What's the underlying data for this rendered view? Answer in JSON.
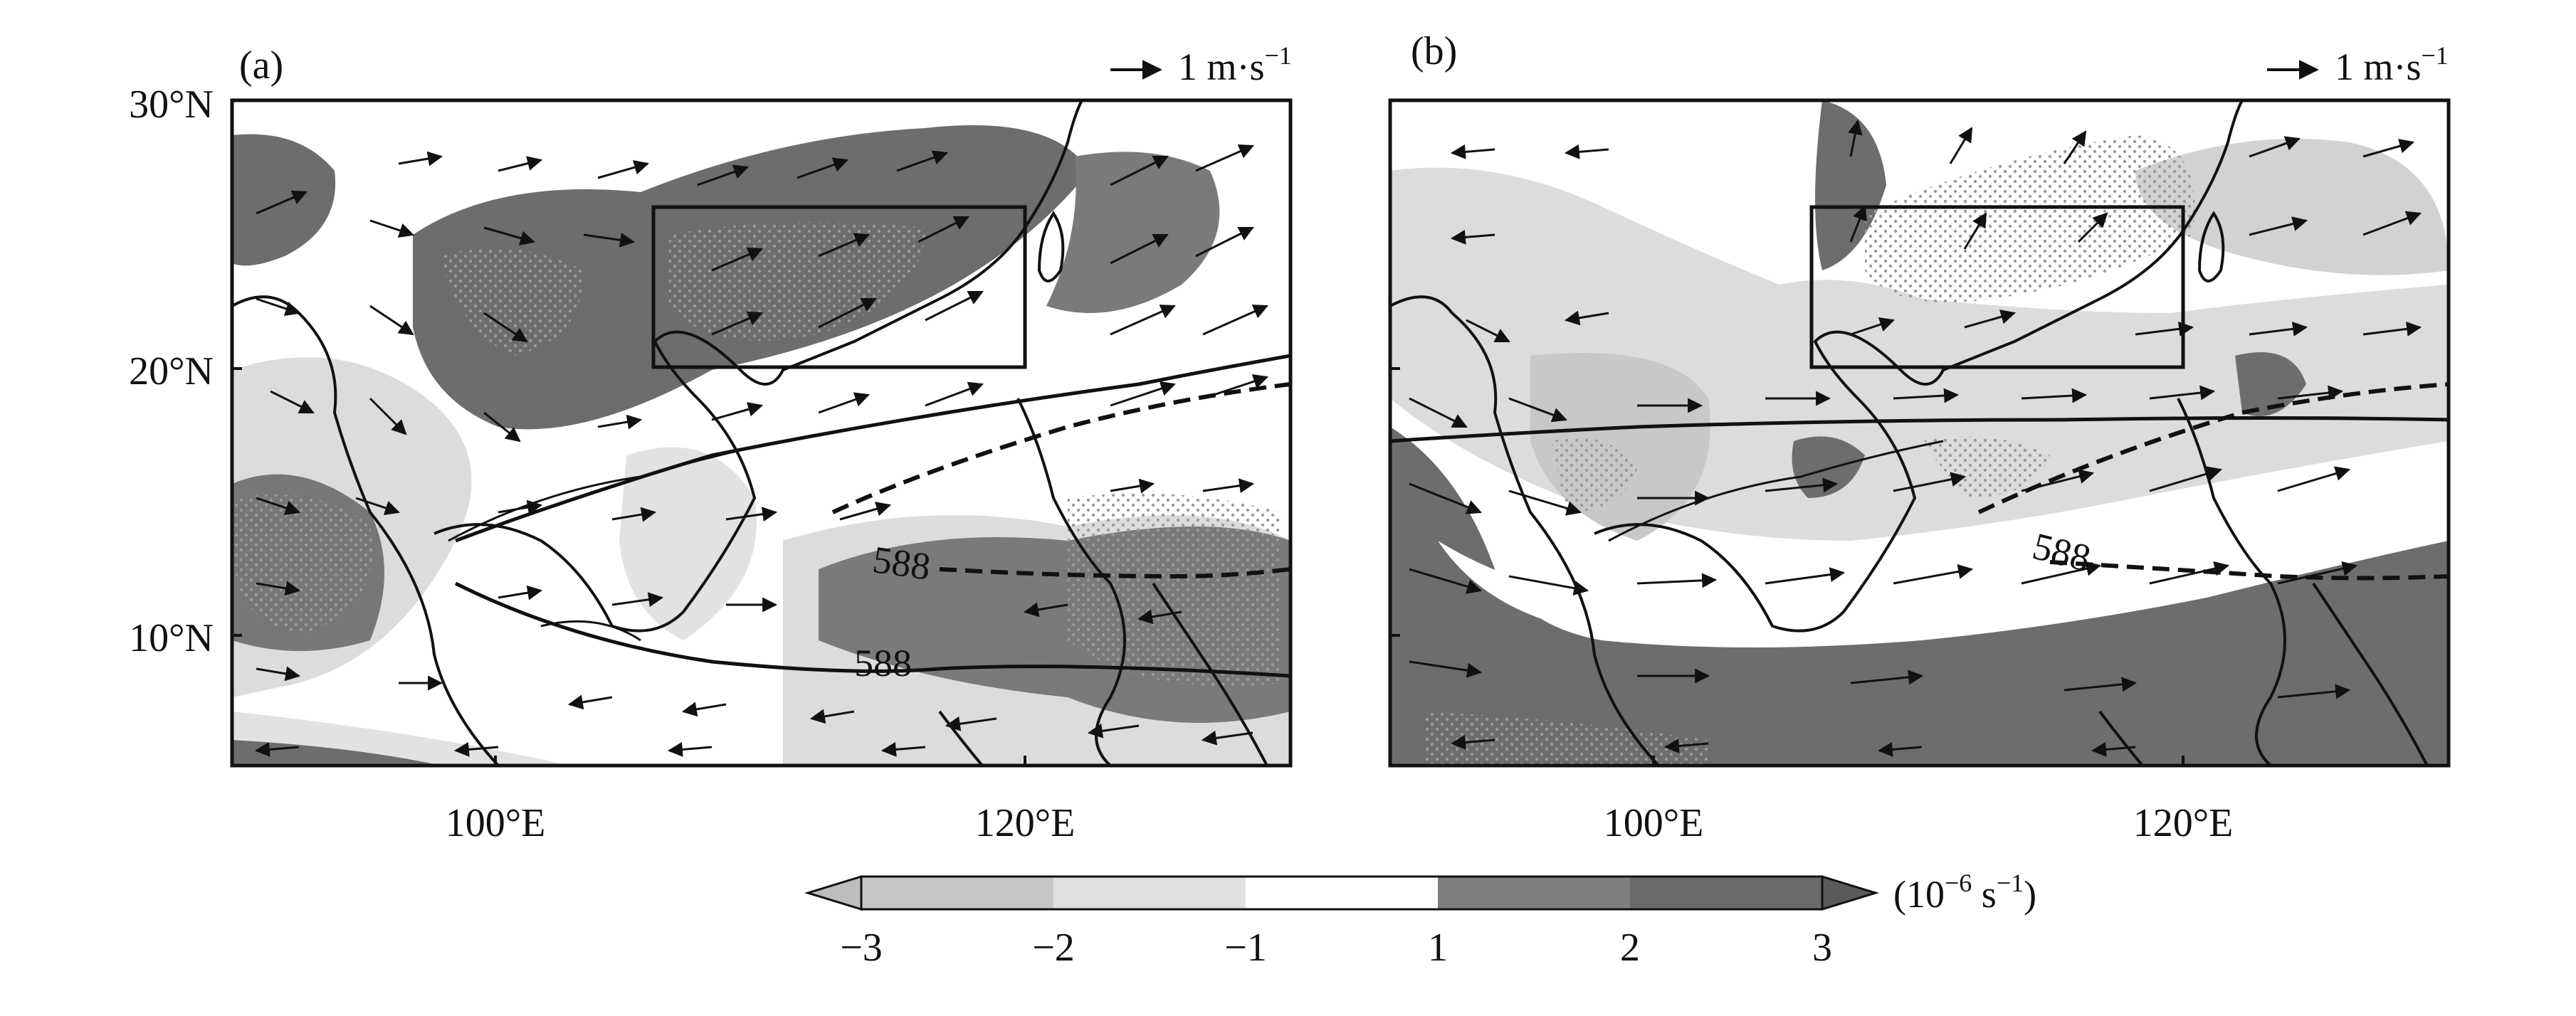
{
  "figure": {
    "panels": [
      {
        "id": "a",
        "label": "(a)",
        "ref_vector": {
          "label": "1 m·s",
          "exponent": "−1"
        },
        "contour_labels": [
          "588",
          "588"
        ]
      },
      {
        "id": "b",
        "label": "(b)",
        "ref_vector": {
          "label": "1 m·s",
          "exponent": "−1"
        },
        "contour_labels": [
          "588"
        ]
      }
    ],
    "y_ticks": [
      "30°N",
      "20°N",
      "10°N"
    ],
    "x_ticks": [
      "100°E",
      "120°E"
    ],
    "colorbar": {
      "ticks": [
        "−3",
        "−2",
        "−1",
        "1",
        "2",
        "3"
      ],
      "unit_prefix": "(10",
      "unit_exp": "−6",
      "unit_suffix": " s",
      "unit_exp2": "−1",
      "unit_close": ")",
      "bins": [
        {
          "range": "<-3",
          "color": "#bdbdbd"
        },
        {
          "range": "-3 to -2",
          "color": "#c6c6c6"
        },
        {
          "range": "-2 to -1",
          "color": "#e0e0e0"
        },
        {
          "range": "-1 to 1",
          "color": "#ffffff"
        },
        {
          "range": "1 to 2",
          "color": "#7f7f7f"
        },
        {
          "range": "2 to 3",
          "color": "#6a6a6a"
        },
        {
          "range": ">3",
          "color": "#5a5a5a"
        }
      ]
    }
  }
}
